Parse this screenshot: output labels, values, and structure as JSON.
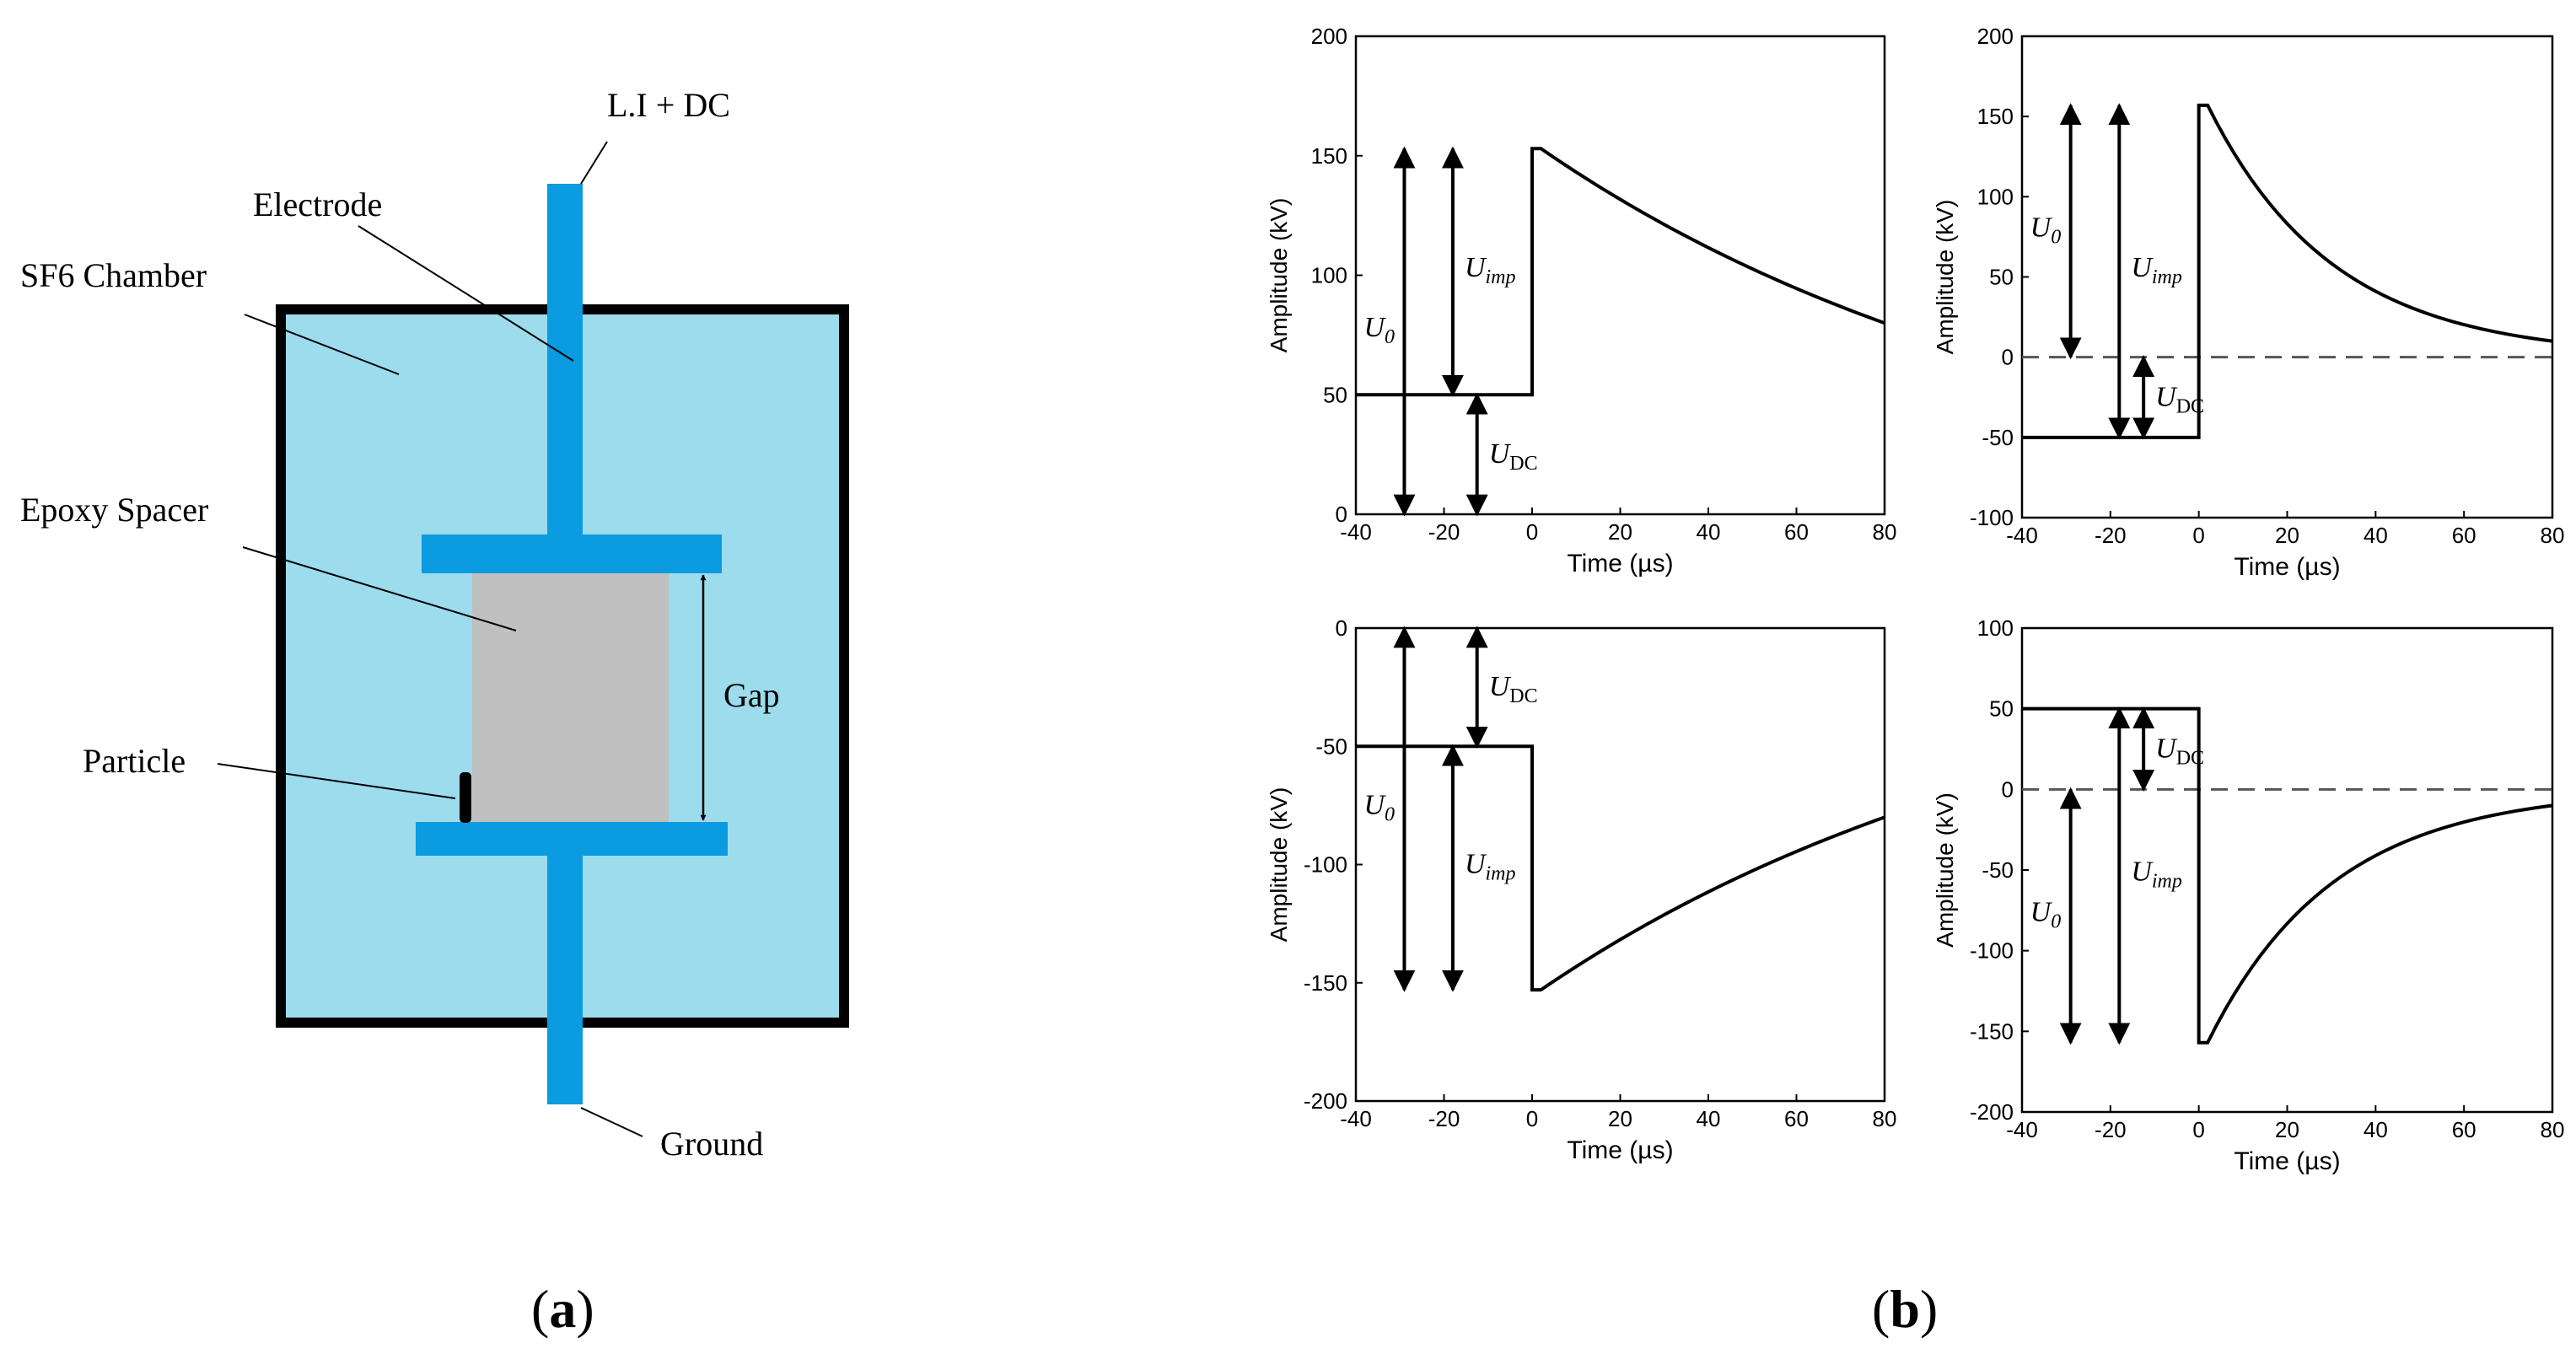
{
  "panel_a": {
    "caption": "(a)",
    "caption_letter": "a",
    "labels": {
      "source": "L.I + DC",
      "electrode": "Electrode",
      "chamber": "SF6 Chamber",
      "spacer": "Epoxy Spacer",
      "gap": "Gap",
      "particle": "Particle",
      "ground": "Ground"
    },
    "colors": {
      "chamber_fill": "#9cdcec",
      "electrode": "#0b9be0",
      "spacer": "#c0c0c0",
      "outline": "#000000"
    }
  },
  "panel_b": {
    "caption": "(b)",
    "caption_letter": "b"
  },
  "chart_data": [
    {
      "type": "line",
      "position": "top-left",
      "title": "",
      "xlabel": "Time (µs)",
      "ylabel": "Amplitude (kV)",
      "xlim": [
        -40,
        80
      ],
      "ylim": [
        0,
        200
      ],
      "xticks": [
        "-40",
        "-20",
        "0",
        "20",
        "40",
        "60",
        "80"
      ],
      "yticks": [
        "0",
        "50",
        "100",
        "150",
        "200"
      ],
      "dc_level": 50,
      "peak": 153,
      "tail_end": 80,
      "zero_line": false,
      "annotations": {
        "u0": "U0",
        "uimp": "Uimp",
        "udc": "UDC"
      },
      "series": [
        {
          "name": "waveform",
          "x": [
            -40,
            0,
            0,
            2,
            80
          ],
          "y": [
            50,
            50,
            153,
            153,
            80
          ]
        }
      ]
    },
    {
      "type": "line",
      "position": "top-right",
      "title": "",
      "xlabel": "Time (µs)",
      "ylabel": "Amplitude (kV)",
      "xlim": [
        -40,
        80
      ],
      "ylim": [
        -100,
        200
      ],
      "xticks": [
        "-40",
        "-20",
        "0",
        "20",
        "40",
        "60",
        "80"
      ],
      "yticks": [
        "-100",
        "-50",
        "0",
        "50",
        "100",
        "150",
        "200"
      ],
      "dc_level": -50,
      "peak": 157,
      "tail_end": 10,
      "zero_line": true,
      "annotations": {
        "u0": "U0",
        "uimp": "Uimp",
        "udc": "UDC"
      },
      "series": [
        {
          "name": "waveform",
          "x": [
            -40,
            0,
            0,
            2,
            80
          ],
          "y": [
            -50,
            -50,
            157,
            157,
            10
          ]
        }
      ]
    },
    {
      "type": "line",
      "position": "bottom-left",
      "title": "",
      "xlabel": "Time (µs)",
      "ylabel": "Amplitude (kV)",
      "xlim": [
        -40,
        80
      ],
      "ylim": [
        -200,
        0
      ],
      "xticks": [
        "-40",
        "-20",
        "0",
        "20",
        "40",
        "60",
        "80"
      ],
      "yticks": [
        "-200",
        "-150",
        "-100",
        "-50",
        "0"
      ],
      "dc_level": -50,
      "peak": -153,
      "tail_end": -80,
      "zero_line": false,
      "annotations": {
        "u0": "U0",
        "uimp": "Uimp",
        "udc": "UDC"
      },
      "series": [
        {
          "name": "waveform",
          "x": [
            -40,
            0,
            0,
            2,
            80
          ],
          "y": [
            -50,
            -50,
            -153,
            -153,
            -80
          ]
        }
      ]
    },
    {
      "type": "line",
      "position": "bottom-right",
      "title": "",
      "xlabel": "Time (µs)",
      "ylabel": "Amplitude (kV)",
      "xlim": [
        -40,
        80
      ],
      "ylim": [
        -200,
        100
      ],
      "xticks": [
        "-40",
        "-20",
        "0",
        "20",
        "40",
        "60",
        "80"
      ],
      "yticks": [
        "-200",
        "-150",
        "-100",
        "-50",
        "0",
        "50",
        "100"
      ],
      "dc_level": 50,
      "peak": -157,
      "tail_end": -10,
      "zero_line": true,
      "annotations": {
        "u0": "U0",
        "uimp": "Uimp",
        "udc": "UDC"
      },
      "series": [
        {
          "name": "waveform",
          "x": [
            -40,
            0,
            0,
            2,
            80
          ],
          "y": [
            50,
            50,
            -157,
            -157,
            -10
          ]
        }
      ]
    }
  ]
}
